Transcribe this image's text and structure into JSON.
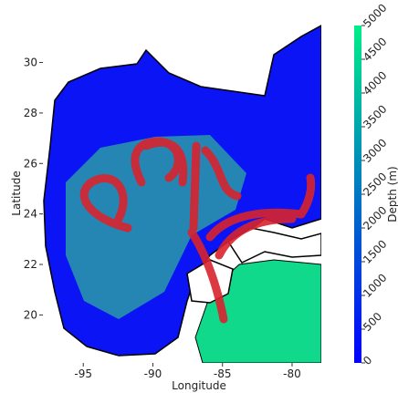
{
  "chart_data": {
    "type": "map",
    "xlabel": "Longitude",
    "ylabel": "Latitude",
    "xlim": [
      -97.9,
      -77.9
    ],
    "xticks": [
      -95,
      -90,
      -85,
      -80
    ],
    "ylim": [
      18.1,
      31.5
    ],
    "yticks": [
      20,
      22,
      24,
      26,
      28,
      30
    ],
    "colorbar": {
      "label": "Depth (m)",
      "lim": [
        0,
        5000
      ],
      "ticks": [
        0,
        500,
        1000,
        1500,
        2000,
        2500,
        3000,
        3500,
        4000,
        4500,
        5000
      ],
      "colors": [
        "#0000ff",
        "#00ee88"
      ]
    }
  }
}
